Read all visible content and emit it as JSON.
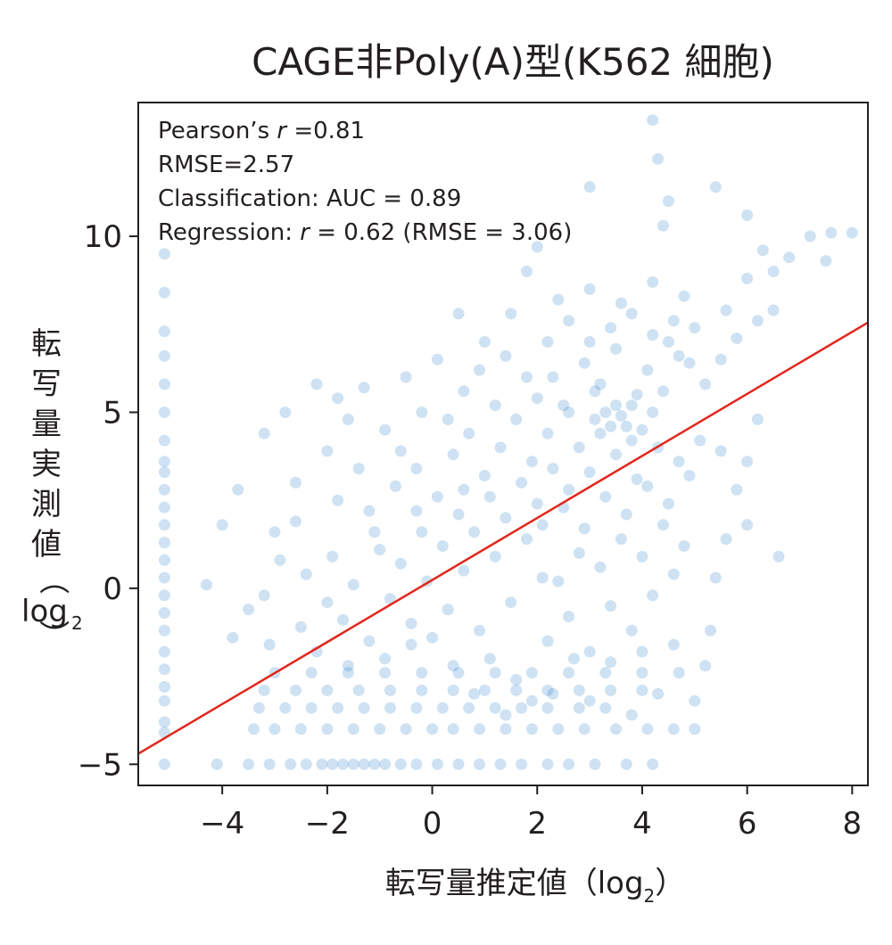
{
  "chart_data": {
    "type": "scatter",
    "title": "CAGE非Poly(A)型(K562 細胞)",
    "xlabel": "転写量推定値（log",
    "xlabel_sub": "2",
    "xlabel_close": "）",
    "ylabel_chars": [
      "転",
      "写",
      "量",
      "実",
      "測",
      "値"
    ],
    "ylabel_paren_open": "（",
    "ylabel_log": "log",
    "ylabel_sub": "2",
    "ylabel_paren_close": "）",
    "xlim": [
      -5.6,
      8.3
    ],
    "ylim": [
      -5.6,
      13.8
    ],
    "xticks": [
      -4,
      -2,
      0,
      2,
      4,
      6,
      8
    ],
    "xtick_labels": [
      "−4",
      "−2",
      "0",
      "2",
      "4",
      "6",
      "8"
    ],
    "yticks": [
      -5,
      0,
      5,
      10
    ],
    "ytick_labels": [
      "−5",
      "0",
      "5",
      "10"
    ],
    "grid": false,
    "point_color": "#0a6fc2",
    "line_color": "#e1261c",
    "annotations": [
      {
        "text": "Pearson’s ",
        "italic": "r",
        "rest": " =0.81"
      },
      {
        "text": "RMSE=2.57",
        "italic": "",
        "rest": ""
      },
      {
        "text": "Classification: AUC = 0.89",
        "italic": "",
        "rest": ""
      },
      {
        "text": "Regression: ",
        "italic": "r",
        "rest": " = 0.62 (RMSE = 3.06)"
      }
    ],
    "regression_line": {
      "x": [
        -5.6,
        8.3
      ],
      "y": [
        -4.7,
        7.55
      ]
    },
    "series": [
      {
        "points": [
          [
            -5.1,
            -5.0
          ],
          [
            -5.1,
            -4.1
          ],
          [
            -5.1,
            -3.8
          ],
          [
            -5.1,
            -3.2
          ],
          [
            -5.1,
            -2.8
          ],
          [
            -5.1,
            -2.3
          ],
          [
            -5.1,
            -1.8
          ],
          [
            -5.1,
            -1.2
          ],
          [
            -5.1,
            -0.7
          ],
          [
            -5.1,
            -0.2
          ],
          [
            -5.1,
            0.3
          ],
          [
            -5.1,
            0.8
          ],
          [
            -5.1,
            1.3
          ],
          [
            -5.1,
            1.8
          ],
          [
            -5.1,
            2.3
          ],
          [
            -5.1,
            2.8
          ],
          [
            -5.1,
            3.3
          ],
          [
            -5.1,
            3.6
          ],
          [
            -5.1,
            4.2
          ],
          [
            -5.1,
            5.0
          ],
          [
            -5.1,
            5.8
          ],
          [
            -5.1,
            6.6
          ],
          [
            -5.1,
            7.3
          ],
          [
            -5.1,
            8.4
          ],
          [
            -5.1,
            9.5
          ],
          [
            -4.1,
            -5.0
          ],
          [
            -3.5,
            -5.0
          ],
          [
            -3.1,
            -5.0
          ],
          [
            -2.7,
            -5.0
          ],
          [
            -2.4,
            -5.0
          ],
          [
            -2.1,
            -5.0
          ],
          [
            -1.9,
            -5.0
          ],
          [
            -1.7,
            -5.0
          ],
          [
            -1.5,
            -5.0
          ],
          [
            -1.3,
            -5.0
          ],
          [
            -1.1,
            -5.0
          ],
          [
            -0.9,
            -5.0
          ],
          [
            -0.6,
            -5.0
          ],
          [
            -0.3,
            -5.0
          ],
          [
            0.1,
            -5.0
          ],
          [
            0.5,
            -5.0
          ],
          [
            0.9,
            -5.0
          ],
          [
            1.3,
            -5.0
          ],
          [
            1.7,
            -5.0
          ],
          [
            2.2,
            -5.0
          ],
          [
            2.6,
            -5.0
          ],
          [
            3.1,
            -5.0
          ],
          [
            3.7,
            -5.0
          ],
          [
            4.2,
            -5.0
          ],
          [
            -3.4,
            -4.0
          ],
          [
            -3.0,
            -4.0
          ],
          [
            -2.5,
            -4.0
          ],
          [
            -2.0,
            -4.0
          ],
          [
            -1.5,
            -4.0
          ],
          [
            -1.0,
            -4.0
          ],
          [
            -0.5,
            -4.0
          ],
          [
            0.0,
            -4.0
          ],
          [
            0.4,
            -4.0
          ],
          [
            0.9,
            -4.0
          ],
          [
            1.4,
            -4.0
          ],
          [
            1.9,
            -4.0
          ],
          [
            2.4,
            -4.0
          ],
          [
            2.9,
            -4.0
          ],
          [
            3.5,
            -4.0
          ],
          [
            4.1,
            -4.0
          ],
          [
            4.6,
            -4.0
          ],
          [
            5.0,
            -4.0
          ],
          [
            -3.3,
            -3.4
          ],
          [
            -2.8,
            -3.4
          ],
          [
            -2.3,
            -3.4
          ],
          [
            -1.8,
            -3.4
          ],
          [
            -1.3,
            -3.4
          ],
          [
            -0.8,
            -3.4
          ],
          [
            -0.3,
            -3.4
          ],
          [
            0.2,
            -3.4
          ],
          [
            0.7,
            -3.4
          ],
          [
            1.2,
            -3.4
          ],
          [
            1.7,
            -3.4
          ],
          [
            2.2,
            -3.4
          ],
          [
            2.8,
            -3.4
          ],
          [
            3.3,
            -3.4
          ],
          [
            -3.2,
            -2.9
          ],
          [
            -2.6,
            -2.9
          ],
          [
            -2.0,
            -2.9
          ],
          [
            -1.4,
            -2.9
          ],
          [
            -0.8,
            -2.9
          ],
          [
            -0.2,
            -2.9
          ],
          [
            0.4,
            -2.9
          ],
          [
            1.0,
            -2.9
          ],
          [
            1.6,
            -2.9
          ],
          [
            2.2,
            -2.9
          ],
          [
            2.8,
            -2.9
          ],
          [
            3.4,
            -2.9
          ],
          [
            4.0,
            -2.9
          ],
          [
            -3.0,
            -2.4
          ],
          [
            -2.3,
            -2.4
          ],
          [
            -1.6,
            -2.4
          ],
          [
            -0.9,
            -2.4
          ],
          [
            -0.2,
            -2.4
          ],
          [
            0.5,
            -2.4
          ],
          [
            1.2,
            -2.4
          ],
          [
            1.9,
            -2.4
          ],
          [
            2.6,
            -2.4
          ],
          [
            3.3,
            -2.4
          ],
          [
            4.0,
            -2.4
          ],
          [
            -3.1,
            -1.6
          ],
          [
            -2.5,
            -1.1
          ],
          [
            -2.2,
            -1.8
          ],
          [
            -1.7,
            -0.9
          ],
          [
            -1.2,
            -1.5
          ],
          [
            -0.8,
            -0.3
          ],
          [
            -0.4,
            -1.0
          ],
          [
            -0.1,
            0.2
          ],
          [
            0.3,
            -0.6
          ],
          [
            0.6,
            0.5
          ],
          [
            0.9,
            -1.2
          ],
          [
            1.2,
            0.9
          ],
          [
            1.5,
            -0.4
          ],
          [
            1.8,
            1.4
          ],
          [
            2.1,
            0.3
          ],
          [
            -2.4,
            0.4
          ],
          [
            -1.9,
            0.9
          ],
          [
            -1.5,
            0.1
          ],
          [
            -1.0,
            1.1
          ],
          [
            -0.6,
            0.7
          ],
          [
            -0.2,
            1.6
          ],
          [
            0.2,
            1.2
          ],
          [
            0.5,
            2.1
          ],
          [
            0.8,
            1.6
          ],
          [
            1.1,
            2.6
          ],
          [
            1.4,
            2.0
          ],
          [
            1.7,
            3.0
          ],
          [
            2.0,
            2.4
          ],
          [
            2.3,
            3.4
          ],
          [
            2.6,
            2.8
          ],
          [
            -1.2,
            2.2
          ],
          [
            -0.7,
            2.9
          ],
          [
            -0.3,
            3.4
          ],
          [
            0.1,
            2.6
          ],
          [
            0.4,
            3.8
          ],
          [
            0.7,
            4.4
          ],
          [
            1.0,
            3.2
          ],
          [
            1.3,
            4.0
          ],
          [
            1.6,
            4.8
          ],
          [
            1.9,
            3.6
          ],
          [
            2.2,
            4.4
          ],
          [
            2.5,
            5.2
          ],
          [
            2.8,
            4.0
          ],
          [
            3.1,
            5.6
          ],
          [
            3.4,
            4.6
          ],
          [
            2.0,
            5.4
          ],
          [
            2.3,
            6.0
          ],
          [
            2.6,
            5.0
          ],
          [
            2.9,
            6.4
          ],
          [
            3.2,
            5.8
          ],
          [
            3.5,
            6.8
          ],
          [
            3.8,
            5.2
          ],
          [
            4.1,
            6.2
          ],
          [
            4.4,
            5.6
          ],
          [
            4.7,
            6.6
          ],
          [
            3.0,
            7.0
          ],
          [
            3.4,
            7.4
          ],
          [
            3.8,
            7.8
          ],
          [
            4.2,
            7.2
          ],
          [
            4.6,
            7.6
          ],
          [
            2.2,
            -1.5
          ],
          [
            2.6,
            -0.8
          ],
          [
            3.0,
            -1.8
          ],
          [
            3.4,
            -0.5
          ],
          [
            3.8,
            -1.2
          ],
          [
            4.2,
            -0.2
          ],
          [
            4.6,
            0.4
          ],
          [
            2.4,
            0.2
          ],
          [
            2.8,
            1.0
          ],
          [
            3.2,
            0.6
          ],
          [
            3.6,
            1.4
          ],
          [
            4.0,
            0.9
          ],
          [
            4.4,
            1.8
          ],
          [
            4.8,
            1.2
          ],
          [
            2.1,
            1.8
          ],
          [
            2.5,
            2.3
          ],
          [
            2.9,
            1.7
          ],
          [
            3.3,
            2.6
          ],
          [
            3.7,
            2.1
          ],
          [
            4.1,
            2.9
          ],
          [
            4.5,
            2.4
          ],
          [
            4.9,
            3.2
          ],
          [
            3.0,
            3.3
          ],
          [
            3.5,
            3.8
          ],
          [
            3.9,
            3.1
          ],
          [
            4.3,
            4.0
          ],
          [
            4.7,
            3.6
          ],
          [
            5.1,
            4.2
          ],
          [
            3.2,
            4.4
          ],
          [
            3.6,
            4.9
          ],
          [
            4.0,
            4.5
          ],
          [
            3.7,
            4.6
          ],
          [
            3.5,
            5.2
          ],
          [
            3.9,
            5.5
          ],
          [
            3.3,
            5.0
          ],
          [
            4.2,
            5.0
          ],
          [
            3.8,
            4.2
          ],
          [
            3.1,
            4.8
          ],
          [
            4.5,
            7.0
          ],
          [
            4.9,
            6.4
          ],
          [
            5.2,
            5.8
          ],
          [
            5.5,
            6.5
          ],
          [
            5.0,
            7.4
          ],
          [
            5.8,
            7.1
          ],
          [
            6.2,
            7.6
          ],
          [
            6.5,
            7.9
          ],
          [
            5.6,
            7.9
          ],
          [
            6.0,
            8.8
          ],
          [
            4.8,
            8.3
          ],
          [
            4.2,
            8.7
          ],
          [
            3.6,
            8.1
          ],
          [
            3.0,
            8.5
          ],
          [
            2.6,
            7.6
          ],
          [
            5.2,
            -2.2
          ],
          [
            5.3,
            -1.2
          ],
          [
            5.4,
            0.3
          ],
          [
            5.6,
            1.4
          ],
          [
            5.8,
            2.8
          ],
          [
            6.0,
            3.6
          ],
          [
            6.2,
            4.8
          ],
          [
            6.6,
            0.9
          ],
          [
            6.0,
            1.8
          ],
          [
            5.5,
            3.9
          ],
          [
            4.2,
            13.3
          ],
          [
            4.3,
            12.2
          ],
          [
            4.4,
            10.3
          ],
          [
            4.5,
            11.0
          ],
          [
            5.4,
            11.4
          ],
          [
            6.0,
            10.6
          ],
          [
            6.3,
            9.6
          ],
          [
            6.5,
            9.0
          ],
          [
            6.8,
            9.4
          ],
          [
            7.2,
            10.0
          ],
          [
            7.6,
            10.1
          ],
          [
            7.5,
            9.3
          ],
          [
            8.0,
            10.1
          ],
          [
            3.0,
            11.4
          ],
          [
            2.0,
            9.7
          ],
          [
            1.8,
            9.0
          ],
          [
            2.4,
            8.2
          ],
          [
            1.5,
            7.8
          ],
          [
            1.0,
            7.0
          ],
          [
            0.5,
            7.8
          ],
          [
            0.1,
            6.5
          ],
          [
            -0.5,
            6.0
          ],
          [
            -1.3,
            5.7
          ],
          [
            -1.8,
            5.4
          ],
          [
            -2.2,
            5.8
          ],
          [
            -2.8,
            5.0
          ],
          [
            -3.2,
            4.4
          ],
          [
            -3.7,
            2.8
          ],
          [
            -4.0,
            1.8
          ],
          [
            -4.3,
            0.1
          ],
          [
            -3.5,
            -0.6
          ],
          [
            -3.8,
            -1.4
          ],
          [
            -3.2,
            -0.2
          ],
          [
            -2.9,
            0.8
          ],
          [
            -2.0,
            -0.4
          ],
          [
            -1.6,
            -2.2
          ],
          [
            -0.9,
            -2.0
          ],
          [
            -0.4,
            -1.6
          ],
          [
            0.4,
            -2.2
          ],
          [
            1.1,
            -2.0
          ],
          [
            1.6,
            -2.6
          ],
          [
            0.8,
            -3.0
          ],
          [
            1.4,
            -3.6
          ],
          [
            1.9,
            -3.2
          ],
          [
            0.0,
            -1.4
          ],
          [
            3.0,
            -3.2
          ],
          [
            3.4,
            -2.1
          ],
          [
            3.8,
            -3.6
          ],
          [
            4.3,
            -3.0
          ],
          [
            4.7,
            -2.4
          ],
          [
            5.0,
            -3.2
          ],
          [
            4.6,
            -1.6
          ],
          [
            4.0,
            -1.8
          ],
          [
            2.7,
            -2.0
          ],
          [
            2.3,
            -3.0
          ],
          [
            -0.6,
            3.9
          ],
          [
            -1.4,
            3.4
          ],
          [
            -2.0,
            3.9
          ],
          [
            -2.6,
            3.0
          ],
          [
            -3.0,
            1.6
          ],
          [
            -2.6,
            1.9
          ],
          [
            -1.8,
            2.5
          ],
          [
            -1.1,
            1.6
          ],
          [
            -0.3,
            2.2
          ],
          [
            0.6,
            2.8
          ],
          [
            1.2,
            5.2
          ],
          [
            0.6,
            5.6
          ],
          [
            0.9,
            6.2
          ],
          [
            1.4,
            6.6
          ],
          [
            1.8,
            6.0
          ],
          [
            2.2,
            7.0
          ],
          [
            -0.2,
            5.0
          ],
          [
            0.3,
            4.8
          ],
          [
            -0.9,
            4.5
          ],
          [
            -1.6,
            4.8
          ]
        ]
      }
    ]
  }
}
